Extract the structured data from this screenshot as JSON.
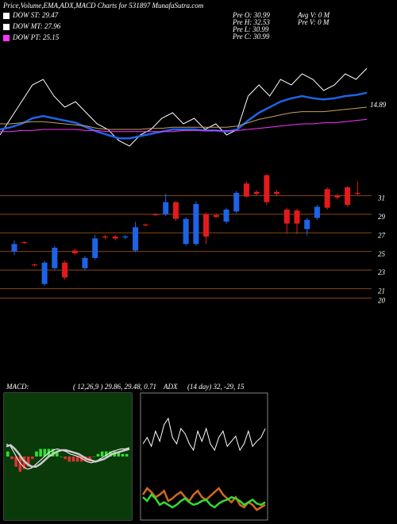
{
  "chart_data": [
    {
      "type": "candlestick",
      "title": "Price,Volume,EMA,ADX,MACD Charts for 531897 MunafaSutra.com",
      "legend": [
        {
          "label": "DOW ST: 29.47",
          "color": "#ffffff"
        },
        {
          "label": "DOW MT: 27.96",
          "color": "#ffffff"
        },
        {
          "label": "DOW PT: 25.15",
          "color": "#ff33ff"
        }
      ],
      "info": [
        "Pre  O: 30.99",
        "Pre  H: 32.53",
        "Pre  L: 30.99",
        "Pre  C: 30.99",
        "Avg  V: 0  M",
        "Pre  V: 0  M"
      ],
      "up_color": "#1e63e6",
      "down_color": "#e31a1c",
      "grid_color": "#8a4a14",
      "ylim": [
        19.6,
        32.4
      ],
      "yticks": [
        31,
        29,
        27,
        25,
        23,
        21,
        20
      ],
      "open": [
        25.0,
        26.0,
        23.6,
        21.5,
        23.2,
        23.8,
        25.1,
        23.2,
        24.3,
        26.6,
        26.6,
        26.5,
        25.1,
        27.9,
        29.0,
        29.0,
        30.3,
        25.8,
        25.8,
        29.0,
        28.9,
        28.2,
        29.3,
        32.3,
        31.4,
        33.2,
        31.4,
        29.5,
        29.4,
        27.4,
        28.6,
        31.7,
        31.0,
        31.9,
        31.3
      ],
      "close": [
        25.8,
        25.9,
        23.5,
        23.8,
        25.4,
        22.2,
        24.8,
        24.3,
        26.4,
        26.5,
        26.4,
        26.6,
        27.6,
        27.8,
        28.9,
        30.3,
        28.5,
        28.5,
        30.1,
        26.6,
        28.7,
        29.5,
        31.3,
        30.9,
        31.2,
        30.3,
        31.2,
        28.0,
        28.0,
        28.4,
        29.8,
        29.7,
        30.8,
        30.0,
        31.2
      ],
      "high": [
        26.2,
        26.1,
        23.7,
        24.0,
        25.6,
        24.0,
        25.3,
        24.5,
        26.8,
        26.8,
        26.8,
        26.8,
        28.2,
        28.0,
        29.1,
        31.2,
        30.4,
        28.7,
        30.4,
        29.2,
        29.1,
        29.7,
        31.5,
        32.5,
        31.6,
        33.3,
        31.6,
        29.7,
        29.6,
        28.6,
        30.0,
        31.9,
        31.2,
        32.0,
        32.5
      ],
      "low": [
        24.6,
        25.8,
        23.4,
        21.3,
        23.0,
        22.0,
        24.6,
        23.0,
        24.1,
        26.3,
        26.2,
        26.3,
        24.9,
        27.7,
        28.8,
        28.8,
        28.3,
        25.6,
        25.6,
        25.8,
        28.6,
        28.0,
        29.1,
        30.8,
        31.0,
        30.0,
        31.0,
        26.9,
        26.9,
        26.7,
        28.4,
        29.5,
        30.6,
        29.8,
        31.0
      ]
    },
    {
      "type": "line",
      "ylim": [
        0,
        100
      ],
      "label": "14.89",
      "series": [
        {
          "color": "#ffffff",
          "values": [
            25,
            40,
            55,
            70,
            75,
            60,
            50,
            55,
            45,
            35,
            30,
            20,
            15,
            25,
            30,
            40,
            45,
            35,
            40,
            30,
            35,
            25,
            30,
            60,
            70,
            60,
            75,
            70,
            80,
            75,
            65,
            70,
            80,
            75,
            85
          ]
        },
        {
          "color": "#1e63e6",
          "values": [
            30,
            32,
            35,
            40,
            42,
            40,
            38,
            36,
            32,
            28,
            25,
            22,
            22,
            24,
            26,
            28,
            30,
            30,
            30,
            29,
            29,
            28,
            30,
            38,
            45,
            50,
            55,
            58,
            60,
            58,
            57,
            58,
            60,
            61,
            63
          ]
        },
        {
          "color": "#c8a060",
          "values": [
            35,
            35,
            36,
            37,
            37,
            36,
            35,
            34,
            33,
            31,
            30,
            30,
            30,
            30,
            31,
            31,
            32,
            32,
            32,
            32,
            32,
            32,
            33,
            36,
            39,
            41,
            43,
            45,
            46,
            46,
            46,
            47,
            48,
            49,
            50
          ]
        },
        {
          "color": "#ff33ff",
          "values": [
            28,
            28,
            29,
            29,
            30,
            30,
            30,
            30,
            29,
            29,
            28,
            28,
            28,
            28,
            28,
            28,
            28,
            29,
            29,
            29,
            29,
            29,
            29,
            30,
            31,
            32,
            33,
            34,
            35,
            35,
            36,
            36,
            37,
            38,
            39
          ]
        }
      ]
    },
    {
      "type": "macd",
      "title": "MACD:",
      "subtitle": "( 12,26,9 ) 29.86, 29.48, 0.71",
      "background": "#0a3a0a",
      "ylim": [
        -50,
        50
      ],
      "series": [
        {
          "color": "#ffffff",
          "values": [
            10,
            8,
            2,
            -4,
            -8,
            -10,
            -9,
            -6,
            -3,
            0,
            3,
            5,
            6,
            5,
            4,
            2,
            1,
            0,
            -2,
            -4,
            -5,
            -4,
            -2,
            0,
            2,
            4,
            5,
            6,
            6,
            7
          ]
        },
        {
          "color": "#cccccc",
          "values": [
            8,
            9,
            6,
            2,
            -3,
            -6,
            -8,
            -8,
            -6,
            -3,
            0,
            2,
            4,
            5,
            5,
            4,
            3,
            2,
            0,
            -2,
            -3,
            -4,
            -3,
            -2,
            0,
            2,
            3,
            4,
            5,
            6
          ]
        }
      ],
      "histogram": {
        "up_color": "#33dd33",
        "down_color": "#dd3333",
        "values": [
          2,
          -1,
          -4,
          -6,
          -5,
          -4,
          -1,
          2,
          3,
          3,
          3,
          3,
          2,
          0,
          -1,
          -2,
          -2,
          -2,
          -2,
          -2,
          -2,
          0,
          1,
          2,
          2,
          2,
          2,
          2,
          1,
          1
        ]
      }
    },
    {
      "type": "adx",
      "title": "ADX",
      "subtitle": "(14 day) 32, -29, 15",
      "ylim": [
        0,
        100
      ],
      "series": [
        {
          "color": "#ffffff",
          "values": [
            60,
            65,
            58,
            70,
            62,
            75,
            80,
            65,
            60,
            72,
            68,
            60,
            55,
            70,
            62,
            72,
            60,
            55,
            65,
            70,
            58,
            62,
            66,
            55,
            60,
            70,
            58,
            62,
            65,
            72
          ]
        },
        {
          "color": "#d2691e",
          "values": [
            20,
            25,
            22,
            18,
            20,
            23,
            15,
            17,
            20,
            22,
            18,
            15,
            20,
            23,
            18,
            16,
            19,
            22,
            25,
            20,
            17,
            14,
            18,
            12,
            10,
            14,
            12,
            8,
            10,
            12
          ]
        },
        {
          "color": "#33dd33",
          "values": [
            18,
            15,
            20,
            17,
            12,
            14,
            12,
            10,
            12,
            15,
            17,
            14,
            12,
            13,
            15,
            16,
            12,
            10,
            13,
            15,
            16,
            18,
            17,
            15,
            12,
            14,
            16,
            13,
            12,
            14
          ]
        }
      ]
    }
  ]
}
